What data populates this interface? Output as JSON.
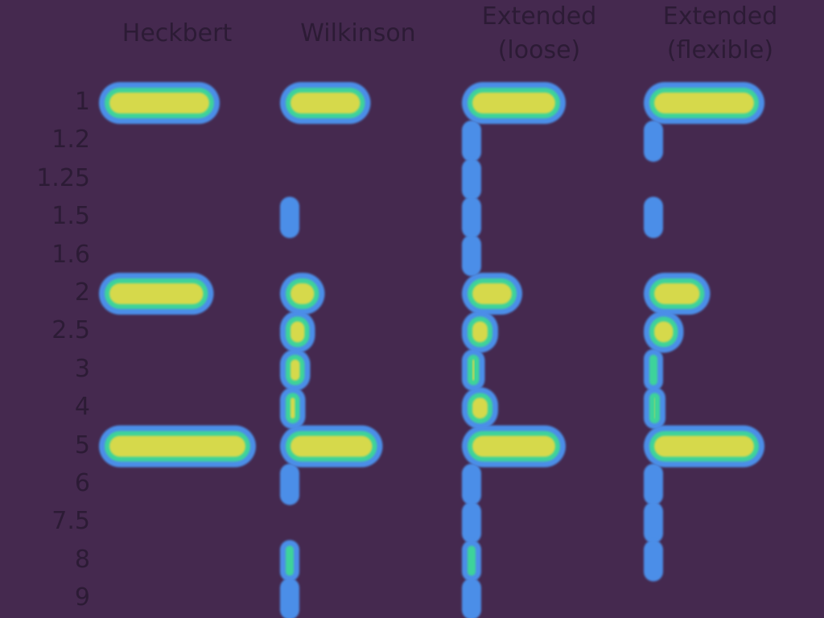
{
  "chart_data": {
    "type": "heatmap",
    "title": "",
    "xlabel": "",
    "ylabel": "",
    "columns": [
      [
        "Heckbert"
      ],
      [
        "Wilkinson"
      ],
      [
        "Extended",
        "(loose)"
      ],
      [
        "Extended",
        "(flexible)"
      ]
    ],
    "rows": [
      "1",
      "1.2",
      "1.25",
      "1.5",
      "1.6",
      "2",
      "2.5",
      "3",
      "4",
      "5",
      "6",
      "7.5",
      "8",
      "9"
    ],
    "value_range": [
      0,
      1
    ],
    "values": [
      [
        1.0,
        0.0,
        0.0,
        0.0,
        0.0,
        0.95,
        0.0,
        0.0,
        0.0,
        1.3,
        0.0,
        0.0,
        0.0,
        0.0
      ],
      [
        0.75,
        0.0,
        0.0,
        0.04,
        0.0,
        0.37,
        0.29,
        0.25,
        0.21,
        0.85,
        0.05,
        0.0,
        0.07,
        0.05
      ],
      [
        0.86,
        0.03,
        0.02,
        0.02,
        0.02,
        0.5,
        0.3,
        0.19,
        0.3,
        0.86,
        0.03,
        0.02,
        0.09,
        0.04
      ],
      [
        1.0,
        0.04,
        0.0,
        0.04,
        0.0,
        0.55,
        0.33,
        0.15,
        0.18,
        1.0,
        0.03,
        0.02,
        0.04,
        0.0
      ]
    ],
    "colors": {
      "background": "#45294f",
      "high": "#d6d94b",
      "mid": "#3ed39a",
      "low": "#4b8ee8",
      "text": "#2c1b35"
    }
  }
}
